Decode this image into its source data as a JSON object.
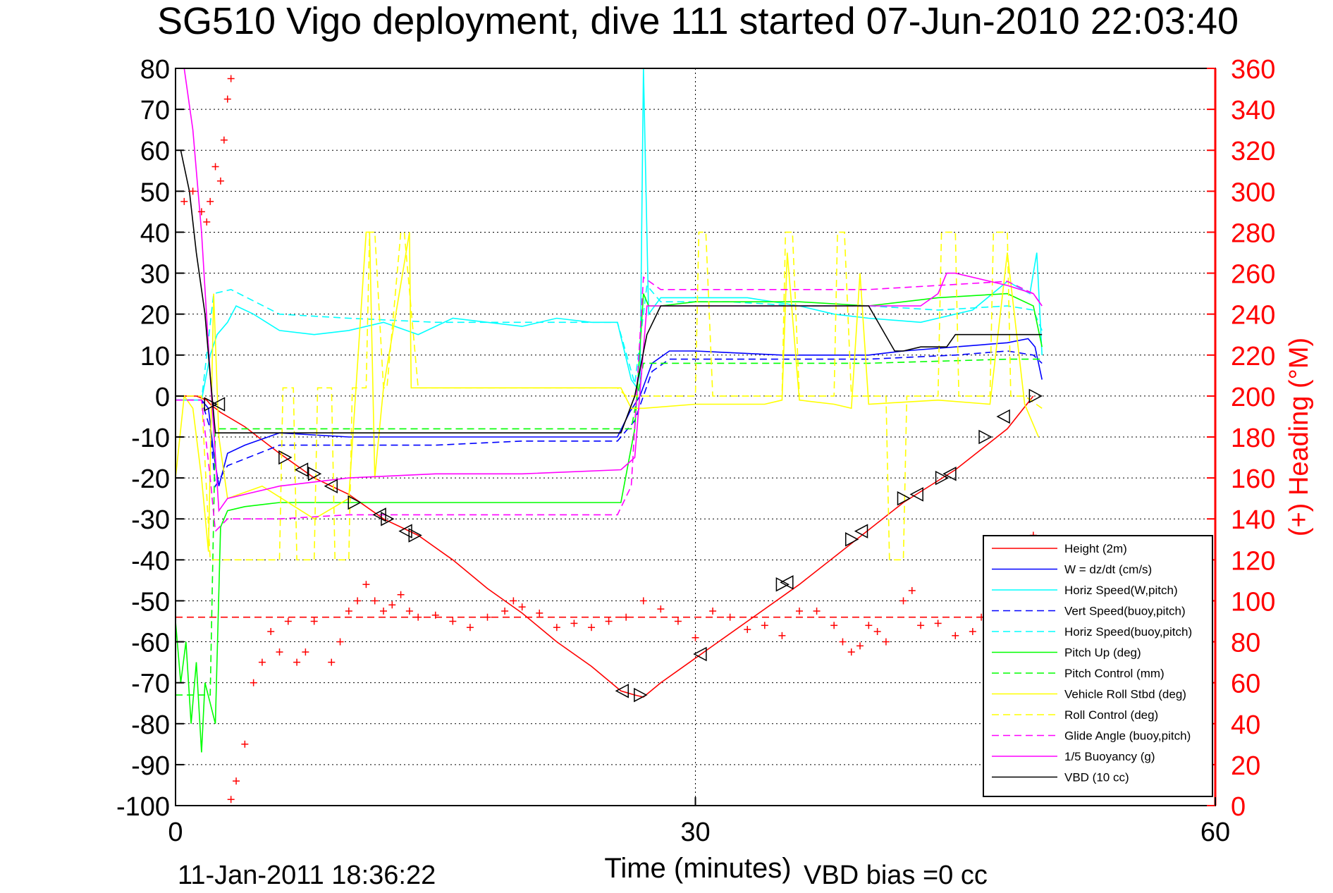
{
  "chart_data": {
    "type": "line",
    "title": "SG510 Vigo deployment, dive 111 started 07-Jun-2010 22:03:40",
    "xlabel": "Time (minutes)",
    "ylabel_left": "",
    "ylabel_right": "(+) Heading (°M)",
    "xlim": [
      0,
      60
    ],
    "ylim_left": [
      -100,
      80
    ],
    "ylim_right": [
      0,
      360
    ],
    "xticks": [
      "0",
      "30",
      "60"
    ],
    "yticks_left": [
      "80",
      "70",
      "60",
      "50",
      "40",
      "30",
      "20",
      "10",
      "0",
      "-10",
      "-20",
      "-30",
      "-40",
      "-50",
      "-60",
      "-70",
      "-80",
      "-90",
      "-100"
    ],
    "yticks_right": [
      "360",
      "340",
      "320",
      "300",
      "280",
      "260",
      "240",
      "220",
      "200",
      "180",
      "160",
      "140",
      "120",
      "100",
      "80",
      "60",
      "40",
      "20",
      "0"
    ],
    "grid": true,
    "legend_position": "bottom-right",
    "footer_date": "11-Jan-2011 18:36:22",
    "footer_vbd": "VBD bias =0 cc",
    "colors": {
      "height": "#ff0000",
      "w": "#0000ff",
      "horiz_w": "#00ffff",
      "vert_buoy": "#0000ff",
      "horiz_buoy": "#00ffff",
      "pitch_up": "#00ff00",
      "pitch_control": "#00ff00",
      "roll": "#ffff00",
      "roll_control": "#ffff00",
      "glide": "#ff00ff",
      "buoyancy": "#ff00ff",
      "vbd": "#000000",
      "heading": "#ff0000",
      "heading_right_axis": "#ff0000"
    },
    "series": [
      {
        "name": "Height (2m)",
        "key": "height",
        "dash": false,
        "x": [
          0,
          1.2,
          1.8,
          2.0,
          2.3,
          2.6,
          3,
          4,
          6,
          8,
          10,
          12,
          14,
          16,
          18,
          20,
          22,
          24,
          25.7,
          26.5,
          27,
          28,
          30,
          33,
          36,
          39,
          42,
          45,
          48,
          49.5
        ],
        "y": [
          0,
          0,
          -1,
          -2,
          -3,
          -4,
          -5,
          -7.5,
          -14,
          -20,
          -24,
          -30,
          -34,
          -40,
          -47,
          -53,
          -60,
          -66,
          -72,
          -73,
          -73.5,
          -70,
          -64,
          -55,
          -46,
          -36,
          -26,
          -18,
          -8,
          0
        ]
      },
      {
        "name": "W = dz/dt (cm/s)",
        "key": "w",
        "dash": false,
        "x": [
          0,
          1.5,
          1.9,
          2.2,
          2.5,
          3,
          4,
          6,
          10,
          15,
          20,
          25.5,
          26.2,
          26.8,
          27.5,
          28.5,
          30,
          35,
          40,
          42,
          45,
          48,
          49.2,
          49.6,
          50
        ],
        "y": [
          -1,
          -1,
          -3,
          -14,
          -22,
          -14,
          -12,
          -9,
          -10,
          -10,
          -10,
          -10,
          -4,
          0,
          8,
          11,
          11,
          10,
          10,
          11,
          12,
          13,
          14,
          12,
          4
        ]
      },
      {
        "name": "Horiz Speed(W,pitch)",
        "key": "horiz_w",
        "dash": false,
        "x": [
          0,
          1.5,
          2.0,
          2.4,
          3,
          3.5,
          4.5,
          6,
          8,
          10,
          12,
          14,
          16,
          18,
          20,
          22,
          24,
          25.5,
          26.3,
          26.8,
          27.0,
          27.3,
          28,
          30,
          33,
          36,
          38,
          40,
          43,
          46,
          48,
          49.3,
          49.7,
          50
        ],
        "y": [
          -1,
          -1,
          10,
          15,
          18,
          22,
          20,
          16,
          15,
          16,
          18,
          15,
          19,
          18,
          17,
          19,
          18,
          18,
          4,
          1,
          80,
          20,
          24,
          24,
          24,
          22,
          20,
          19,
          18,
          21,
          28,
          25,
          35,
          10
        ]
      },
      {
        "name": "Vert Speed(buoy,pitch)",
        "key": "vert_buoy",
        "dash": true,
        "x": [
          0,
          1.5,
          2.0,
          2.3,
          3,
          6,
          10,
          15,
          20,
          25.5,
          26.5,
          27.5,
          28.5,
          30,
          35,
          40,
          45,
          48,
          49.5,
          50
        ],
        "y": [
          -1,
          -1,
          -8,
          -22,
          -17,
          -12,
          -12,
          -12,
          -11,
          -11,
          -6,
          6,
          9,
          9,
          9,
          9,
          10,
          11,
          10,
          8
        ]
      },
      {
        "name": "Horiz Speed(buoy,pitch)",
        "key": "horiz_buoy",
        "dash": true,
        "x": [
          0,
          1.5,
          2.2,
          3.2,
          6,
          10,
          15,
          20,
          25.5,
          26.5,
          27.2,
          28,
          32,
          36,
          40,
          44,
          48,
          49.5,
          50
        ],
        "y": [
          -1,
          -1,
          25,
          26,
          20,
          19,
          18,
          18,
          18,
          3,
          27,
          23,
          23,
          22,
          22,
          21,
          22,
          21,
          16
        ]
      },
      {
        "name": "Pitch Up (deg)",
        "key": "pitch_up",
        "dash": false,
        "x": [
          0,
          0.3,
          0.6,
          0.9,
          1.2,
          1.5,
          1.7,
          2.0,
          2.3,
          2.6,
          3,
          4,
          6,
          8,
          10,
          14,
          18,
          22,
          25.7,
          26.5,
          27.0,
          27.3,
          28,
          30,
          33,
          36,
          40,
          44,
          48,
          49.5,
          50
        ],
        "y": [
          -55,
          -70,
          -60,
          -80,
          -65,
          -87,
          -70,
          -75,
          -80,
          -32,
          -28,
          -27,
          -26,
          -26,
          -26,
          -26,
          -26,
          -26,
          -26,
          -8,
          25,
          22,
          22,
          23,
          23,
          23,
          22,
          24,
          25,
          22,
          12
        ]
      },
      {
        "name": "Pitch Control (mm)",
        "key": "pitch_control",
        "dash": true,
        "x": [
          0,
          1.5,
          2.0,
          2.3,
          3,
          10,
          20,
          25.8,
          26.3,
          27,
          30,
          40,
          48,
          50
        ],
        "y": [
          -73,
          -73,
          -73,
          -8,
          -8,
          -8,
          -8,
          -8,
          -8,
          8,
          8,
          8,
          9,
          9
        ]
      },
      {
        "name": "Vehicle Roll Stbd (deg)",
        "key": "roll",
        "dash": false,
        "x": [
          0,
          0.5,
          1.0,
          1.5,
          1.9,
          2.2,
          2.5,
          3,
          5,
          8,
          10,
          11,
          11.2,
          11.5,
          12,
          13.5,
          13.6,
          14,
          18,
          22,
          25.7,
          26.3,
          27,
          30,
          34,
          35,
          35.3,
          36,
          38,
          39,
          39.5,
          40,
          44,
          47,
          48,
          49,
          49.8
        ],
        "y": [
          -20,
          0,
          -3,
          -20,
          -38,
          25,
          -10,
          -25,
          -22,
          -30,
          -25,
          40,
          40,
          -20,
          2,
          40,
          2,
          2,
          2,
          2,
          2,
          -3,
          -3,
          -2,
          -2,
          -1,
          35,
          -1,
          -2,
          -3,
          30,
          -2,
          -1,
          -2,
          35,
          -2,
          -10
        ]
      },
      {
        "name": "Roll Control (deg)",
        "key": "roll_control",
        "dash": true,
        "x": [
          0,
          1.5,
          2.0,
          2.5,
          4,
          6,
          6.2,
          6.8,
          7.0,
          8,
          8.2,
          9,
          9.2,
          10,
          10.2,
          11,
          11.2,
          11.5,
          12,
          12.2,
          13,
          13.2,
          14,
          25.5,
          26,
          27,
          30,
          30.2,
          30.6,
          31,
          35,
          35.2,
          35.6,
          36,
          38,
          38.2,
          38.6,
          39,
          40,
          41,
          41.2,
          42,
          42.2,
          44,
          44.2,
          45,
          45.2,
          47,
          47.2,
          48,
          48.2,
          49,
          50
        ],
        "y": [
          0,
          0,
          -40,
          -40,
          -40,
          -40,
          2,
          2,
          -40,
          -40,
          2,
          2,
          -40,
          -40,
          2,
          2,
          40,
          40,
          2,
          2,
          40,
          40,
          2,
          2,
          0,
          0,
          0,
          40,
          40,
          0,
          0,
          40,
          40,
          0,
          0,
          40,
          40,
          0,
          0,
          0,
          -40,
          -40,
          0,
          0,
          40,
          40,
          0,
          0,
          40,
          40,
          0,
          0,
          -3
        ]
      },
      {
        "name": "Glide Angle (buoy,pitch)",
        "key": "glide",
        "dash": true,
        "x": [
          0,
          1.5,
          2.0,
          2.3,
          3,
          6,
          10,
          15,
          20,
          25.5,
          26.3,
          27,
          28,
          32,
          36,
          40,
          44,
          48,
          49.5,
          50
        ],
        "y": [
          -1,
          -1,
          -20,
          -33,
          -30,
          -30,
          -29,
          -29,
          -29,
          -29,
          -22,
          29,
          26,
          26,
          26,
          26,
          27,
          28,
          25,
          22
        ]
      },
      {
        "name": "1/5 Buoyancy (g)",
        "key": "buoyancy",
        "dash": false,
        "x": [
          0.5,
          1.0,
          1.5,
          2.0,
          2.5,
          3,
          4,
          6,
          10,
          15,
          20,
          25.7,
          26.5,
          27.2,
          28,
          32,
          36,
          40,
          43,
          44,
          44.5,
          45,
          48,
          49.5,
          50
        ],
        "y": [
          80,
          65,
          40,
          5,
          -28,
          -25,
          -24,
          -22,
          -20,
          -19,
          -19,
          -18,
          -15,
          22,
          22,
          22,
          22,
          22,
          22,
          25,
          30,
          30,
          27,
          25,
          22
        ]
      },
      {
        "name": "VBD (10 cc)",
        "key": "vbd",
        "dash": false,
        "x": [
          0.3,
          0.8,
          1.2,
          1.7,
          2.0,
          2.3,
          3,
          10,
          20,
          25.7,
          26.5,
          27.2,
          28,
          30,
          35,
          40,
          41.5,
          42,
          43,
          44.5,
          45,
          48,
          49.5,
          50
        ],
        "y": [
          60,
          50,
          35,
          20,
          5,
          -9,
          -9,
          -9,
          -9,
          -9,
          0,
          15,
          22,
          22,
          22,
          22,
          11,
          11,
          12,
          12,
          15,
          15,
          15,
          15
        ]
      }
    ],
    "heading": {
      "name": "Heading",
      "right_axis_degrees": [
        {
          "x": 0.5,
          "y": 295
        },
        {
          "x": 1.0,
          "y": 300
        },
        {
          "x": 1.5,
          "y": 290
        },
        {
          "x": 1.8,
          "y": 285
        },
        {
          "x": 2.0,
          "y": 295
        },
        {
          "x": 2.3,
          "y": 312
        },
        {
          "x": 2.6,
          "y": 305
        },
        {
          "x": 2.8,
          "y": 325
        },
        {
          "x": 3.0,
          "y": 345
        },
        {
          "x": 3.2,
          "y": 355
        },
        {
          "x": 3.2,
          "y": 3
        },
        {
          "x": 3.5,
          "y": 12
        },
        {
          "x": 4.0,
          "y": 30
        },
        {
          "x": 4.5,
          "y": 60
        },
        {
          "x": 5.0,
          "y": 70
        },
        {
          "x": 5.5,
          "y": 85
        },
        {
          "x": 6.0,
          "y": 75
        },
        {
          "x": 6.5,
          "y": 90
        },
        {
          "x": 7.0,
          "y": 70
        },
        {
          "x": 7.5,
          "y": 75
        },
        {
          "x": 8.0,
          "y": 90
        },
        {
          "x": 9.0,
          "y": 70
        },
        {
          "x": 9.5,
          "y": 80
        },
        {
          "x": 10.0,
          "y": 95
        },
        {
          "x": 10.5,
          "y": 100
        },
        {
          "x": 11.0,
          "y": 108
        },
        {
          "x": 11.5,
          "y": 100
        },
        {
          "x": 12.0,
          "y": 95
        },
        {
          "x": 12.5,
          "y": 98
        },
        {
          "x": 13.0,
          "y": 103
        },
        {
          "x": 13.5,
          "y": 95
        },
        {
          "x": 14.0,
          "y": 92
        },
        {
          "x": 15.0,
          "y": 93
        },
        {
          "x": 16.0,
          "y": 90
        },
        {
          "x": 17.0,
          "y": 87
        },
        {
          "x": 18.0,
          "y": 92
        },
        {
          "x": 19.0,
          "y": 95
        },
        {
          "x": 19.5,
          "y": 100
        },
        {
          "x": 20.0,
          "y": 97
        },
        {
          "x": 21.0,
          "y": 94
        },
        {
          "x": 22.0,
          "y": 87
        },
        {
          "x": 23.0,
          "y": 89
        },
        {
          "x": 24.0,
          "y": 87
        },
        {
          "x": 25.0,
          "y": 90
        },
        {
          "x": 26.0,
          "y": 92
        },
        {
          "x": 27.0,
          "y": 100
        },
        {
          "x": 28.0,
          "y": 96
        },
        {
          "x": 29.0,
          "y": 90
        },
        {
          "x": 30.0,
          "y": 82
        },
        {
          "x": 31.0,
          "y": 95
        },
        {
          "x": 32.0,
          "y": 92
        },
        {
          "x": 33.0,
          "y": 86
        },
        {
          "x": 34.0,
          "y": 88
        },
        {
          "x": 35.0,
          "y": 83
        },
        {
          "x": 36.0,
          "y": 95
        },
        {
          "x": 37.0,
          "y": 95
        },
        {
          "x": 38.0,
          "y": 88
        },
        {
          "x": 38.5,
          "y": 80
        },
        {
          "x": 39.0,
          "y": 75
        },
        {
          "x": 39.5,
          "y": 78
        },
        {
          "x": 40.0,
          "y": 88
        },
        {
          "x": 40.5,
          "y": 85
        },
        {
          "x": 41.0,
          "y": 80
        },
        {
          "x": 42.0,
          "y": 100
        },
        {
          "x": 42.5,
          "y": 105
        },
        {
          "x": 43.0,
          "y": 88
        },
        {
          "x": 44.0,
          "y": 89
        },
        {
          "x": 45.0,
          "y": 83
        },
        {
          "x": 46.0,
          "y": 85
        },
        {
          "x": 46.5,
          "y": 92
        },
        {
          "x": 48.0,
          "y": 117
        },
        {
          "x": 49.5,
          "y": 132
        }
      ],
      "mean_deg": 92
    },
    "triangle_markers": [
      {
        "x": 2.0,
        "y": -2
      },
      {
        "x": 2.5,
        "y": -2
      },
      {
        "x": 6.3,
        "y": -15
      },
      {
        "x": 7.3,
        "y": -18
      },
      {
        "x": 8.0,
        "y": -19
      },
      {
        "x": 9.0,
        "y": -22
      },
      {
        "x": 10.3,
        "y": -26
      },
      {
        "x": 11.8,
        "y": -29
      },
      {
        "x": 12.2,
        "y": -30
      },
      {
        "x": 13.3,
        "y": -33
      },
      {
        "x": 13.8,
        "y": -34
      },
      {
        "x": 25.8,
        "y": -72
      },
      {
        "x": 26.8,
        "y": -73
      },
      {
        "x": 30.3,
        "y": -63
      },
      {
        "x": 35.0,
        "y": -46
      },
      {
        "x": 35.3,
        "y": -45.5
      },
      {
        "x": 39.0,
        "y": -35
      },
      {
        "x": 39.6,
        "y": -33
      },
      {
        "x": 42.0,
        "y": -25
      },
      {
        "x": 42.8,
        "y": -24
      },
      {
        "x": 44.2,
        "y": -20
      },
      {
        "x": 44.7,
        "y": -19
      },
      {
        "x": 46.7,
        "y": -10
      },
      {
        "x": 47.8,
        "y": -5
      },
      {
        "x": 49.6,
        "y": 0
      }
    ]
  }
}
